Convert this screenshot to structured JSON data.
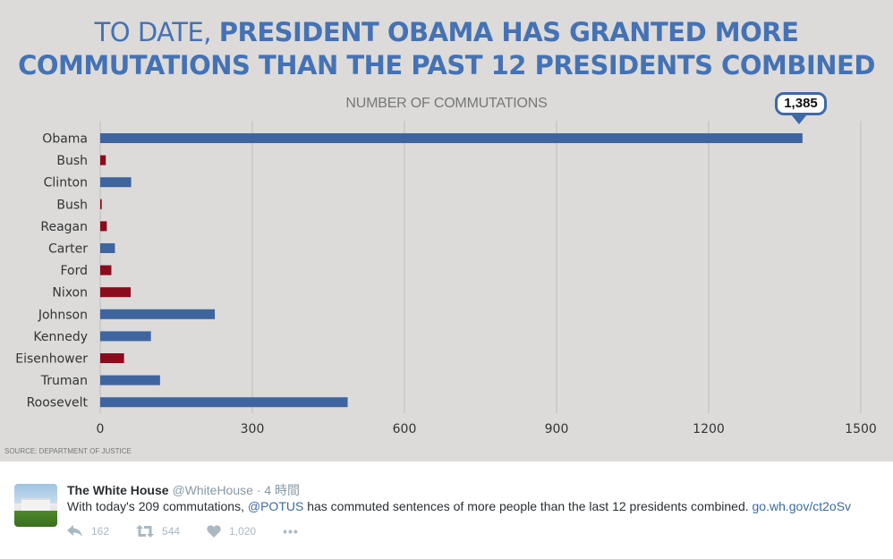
{
  "chart_data": {
    "type": "bar",
    "orientation": "horizontal",
    "title_light": "TO DATE,",
    "title_bold_line1": "PRESIDENT OBAMA HAS GRANTED MORE",
    "title_bold_line2": "COMMUTATIONS THAN THE PAST 12 PRESIDENTS COMBINED",
    "subtitle": "NUMBER OF COMMUTATIONS",
    "xlabel": "NUMBER OF COMMUTATIONS",
    "ylabel": "",
    "xlim": [
      0,
      1500
    ],
    "xticks": [
      0,
      300,
      600,
      900,
      1200,
      1500
    ],
    "grid": true,
    "categories": [
      "Obama",
      "Bush",
      "Clinton",
      "Bush",
      "Reagan",
      "Carter",
      "Ford",
      "Nixon",
      "Johnson",
      "Kennedy",
      "Eisenhower",
      "Truman",
      "Roosevelt"
    ],
    "values": [
      1385,
      11,
      61,
      3,
      13,
      29,
      22,
      60,
      226,
      100,
      47,
      118,
      488
    ],
    "party": [
      "D",
      "R",
      "D",
      "R",
      "R",
      "D",
      "R",
      "R",
      "D",
      "D",
      "R",
      "D",
      "D"
    ],
    "colors": {
      "D": "#3f65a0",
      "R": "#8b0c1d"
    },
    "annotation": {
      "label": "1,385",
      "target": "Obama"
    },
    "source": "SOURCE: DEPARTMENT OF JUSTICE"
  },
  "tweet": {
    "name": "The White House",
    "handle": "@WhiteHouse",
    "time": "· 4 時間",
    "text_before": "With today's 209 commutations, ",
    "mention": "@POTUS",
    "text_after": " has commuted sentences of more people than the last 12 presidents combined. ",
    "link": "go.wh.gov/ct2oSv",
    "replies": "162",
    "retweets": "544",
    "likes": "1,020",
    "more": "•••",
    "icons": {
      "reply": "reply-icon",
      "retweet": "retweet-icon",
      "like": "heart-icon",
      "more": "more-icon"
    }
  }
}
